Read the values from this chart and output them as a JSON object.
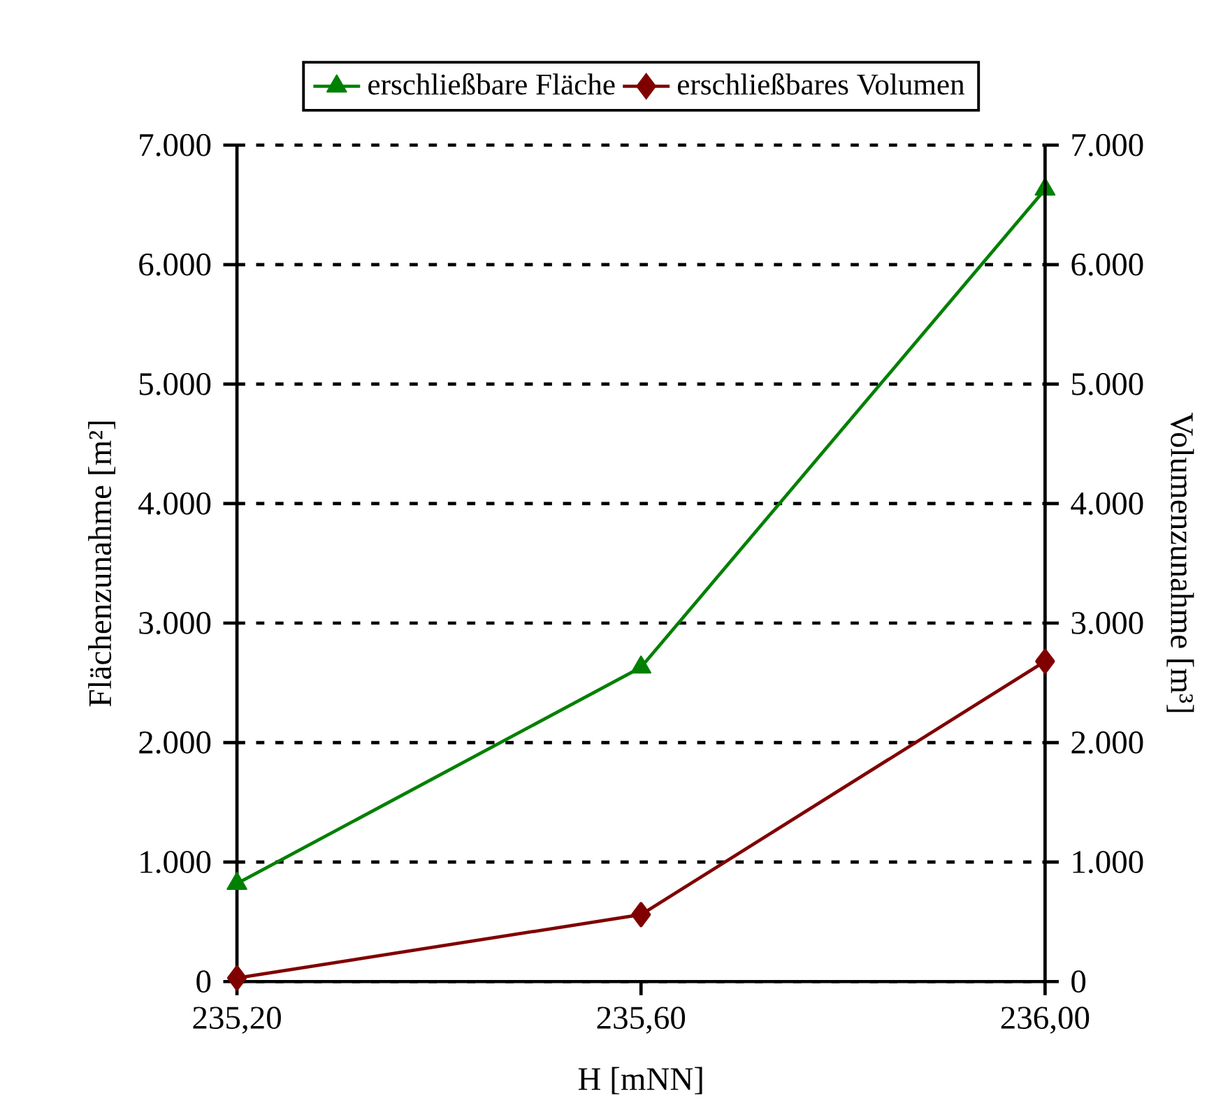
{
  "chart_data": {
    "type": "line",
    "xlabel": "H [mNN]",
    "ylabel": "Flächenzunahme [m²]",
    "y2label": "Volumenzunahme [m³]",
    "x": [
      235.2,
      235.6,
      236.0
    ],
    "xlim": [
      235.2,
      236.0
    ],
    "xticks": [
      {
        "value": 235.2,
        "label": "235,20"
      },
      {
        "value": 235.6,
        "label": "235,60"
      },
      {
        "value": 236.0,
        "label": "236,00"
      }
    ],
    "ylim": [
      0,
      7000
    ],
    "yticks": [
      0,
      {
        "value": 1000,
        "label": "1.000"
      },
      {
        "value": 2000,
        "label": "2.000"
      },
      {
        "value": 3000,
        "label": "3.000"
      },
      {
        "value": 4000,
        "label": "4.000"
      },
      {
        "value": 5000,
        "label": "5.000"
      },
      {
        "value": 6000,
        "label": "6.000"
      },
      {
        "value": 7000,
        "label": "7.000"
      }
    ],
    "y2lim": [
      0,
      7000
    ],
    "y2ticks": [
      0,
      {
        "value": 1000,
        "label": "1.000"
      },
      {
        "value": 2000,
        "label": "2.000"
      },
      {
        "value": 3000,
        "label": "3.000"
      },
      {
        "value": 4000,
        "label": "4.000"
      },
      {
        "value": 5000,
        "label": "5.000"
      },
      {
        "value": 6000,
        "label": "6.000"
      },
      {
        "value": 7000,
        "label": "7.000"
      }
    ],
    "grid": "y",
    "legend": "top",
    "line_style": "solid",
    "series": [
      {
        "name": "erschließbare Fläche",
        "color": "#008000",
        "marker": "triangle",
        "values": [
          820,
          2630,
          6630
        ]
      },
      {
        "name": "erschließbares Volumen",
        "color": "#800000",
        "marker": "diamond",
        "axis": "y2",
        "values": [
          30,
          560,
          2680
        ]
      }
    ]
  }
}
